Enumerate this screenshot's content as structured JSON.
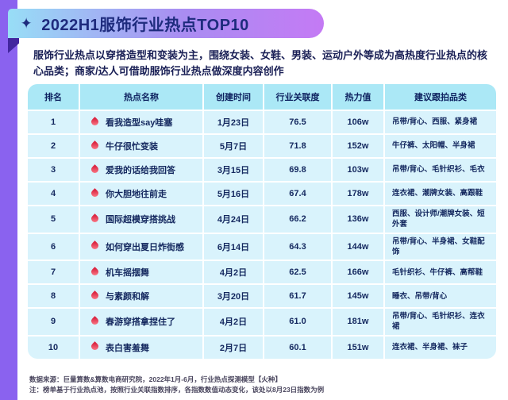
{
  "page": {
    "title": "2022H1服饰行业热点TOP10",
    "sparkle_icon": "✦",
    "intro": "服饰行业热点以穿搭造型和变装为主，围绕女装、女鞋、男装、运动户外等成为高热度行业热点的核心品类；商家/达人可借助服饰行业热点做深度内容创作",
    "footnote_line1": "数据来源：巨量算数&算数电商研究院，2022年1月-6月，行业热点探测模型【火种】",
    "footnote_line2": "注：榜单基于行业热点池，按照行业关联指数排序，各指数数值动态变化，该处以8月23日指数为例"
  },
  "colors": {
    "left_strip": "#8a62ef",
    "banner_gradient_start": "#98def6",
    "banner_gradient_end": "#c47af4",
    "banner_fold": "#43269f",
    "title_text": "#1e2b7d",
    "header_cell_bg": "#abe8f6",
    "body_cell_bg": "#d9f3fc",
    "cell_text": "#14285f",
    "hot_drop": "#dc2743"
  },
  "table": {
    "headers": [
      "排名",
      "热点名称",
      "创建时间",
      "行业关联度",
      "热力值",
      "建议跟拍品类"
    ],
    "rows": [
      {
        "rank": "1",
        "name": "看我造型say哇塞",
        "date": "1月23日",
        "relevance": "76.5",
        "heat": "106w",
        "categories": "吊带/背心、西服、紧身裙"
      },
      {
        "rank": "2",
        "name": "牛仔很忙变装",
        "date": "5月7日",
        "relevance": "71.8",
        "heat": "152w",
        "categories": "牛仔裤、太阳帽、半身裙"
      },
      {
        "rank": "3",
        "name": "爱我的话给我回答",
        "date": "3月15日",
        "relevance": "69.8",
        "heat": "103w",
        "categories": "吊带/背心、毛针织衫、毛衣"
      },
      {
        "rank": "4",
        "name": "你大胆地往前走",
        "date": "5月16日",
        "relevance": "67.4",
        "heat": "178w",
        "categories": "连衣裙、潮牌女装、高跟鞋"
      },
      {
        "rank": "5",
        "name": "国际超模穿搭挑战",
        "date": "4月24日",
        "relevance": "66.2",
        "heat": "136w",
        "categories": "西服、设计师/潮牌女装、短外套"
      },
      {
        "rank": "6",
        "name": "如何穿出夏日炸街感",
        "date": "6月14日",
        "relevance": "64.3",
        "heat": "144w",
        "categories": "吊带/背心、半身裙、女鞋配饰"
      },
      {
        "rank": "7",
        "name": "机车摇摆舞",
        "date": "4月2日",
        "relevance": "62.5",
        "heat": "166w",
        "categories": "毛针织衫、牛仔裤、高帮鞋"
      },
      {
        "rank": "8",
        "name": "与素颜和解",
        "date": "3月20日",
        "relevance": "61.7",
        "heat": "145w",
        "categories": "睡衣、吊带/背心"
      },
      {
        "rank": "9",
        "name": "春游穿搭拿捏住了",
        "date": "4月2日",
        "relevance": "61.0",
        "heat": "181w",
        "categories": "吊带/背心、毛针织衫、连衣裙"
      },
      {
        "rank": "10",
        "name": "表白害羞舞",
        "date": "2月7日",
        "relevance": "60.1",
        "heat": "151w",
        "categories": "连衣裙、半身裙、袜子"
      }
    ]
  },
  "chart_data": {
    "type": "table",
    "title": "2022H1服饰行业热点TOP10",
    "columns": [
      "排名",
      "热点名称",
      "创建时间",
      "行业关联度",
      "热力值",
      "建议跟拍品类"
    ],
    "rows": [
      [
        "1",
        "看我造型say哇塞",
        "1月23日",
        76.5,
        "106w",
        "吊带/背心、西服、紧身裙"
      ],
      [
        "2",
        "牛仔很忙变装",
        "5月7日",
        71.8,
        "152w",
        "牛仔裤、太阳帽、半身裙"
      ],
      [
        "3",
        "爱我的话给我回答",
        "3月15日",
        69.8,
        "103w",
        "吊带/背心、毛针织衫、毛衣"
      ],
      [
        "4",
        "你大胆地往前走",
        "5月16日",
        67.4,
        "178w",
        "连衣裙、潮牌女装、高跟鞋"
      ],
      [
        "5",
        "国际超模穿搭挑战",
        "4月24日",
        66.2,
        "136w",
        "西服、设计师/潮牌女装、短外套"
      ],
      [
        "6",
        "如何穿出夏日炸街感",
        "6月14日",
        64.3,
        "144w",
        "吊带/背心、半身裙、女鞋配饰"
      ],
      [
        "7",
        "机车摇摆舞",
        "4月2日",
        62.5,
        "166w",
        "毛针织衫、牛仔裤、高帮鞋"
      ],
      [
        "8",
        "与素颜和解",
        "3月20日",
        61.7,
        "145w",
        "睡衣、吊带/背心"
      ],
      [
        "9",
        "春游穿搭拿捏住了",
        "4月2日",
        61.0,
        "181w",
        "吊带/背心、毛针织衫、连衣裙"
      ],
      [
        "10",
        "表白害羞舞",
        "2月7日",
        60.1,
        "151w",
        "连衣裙、半身裙、袜子"
      ]
    ]
  }
}
